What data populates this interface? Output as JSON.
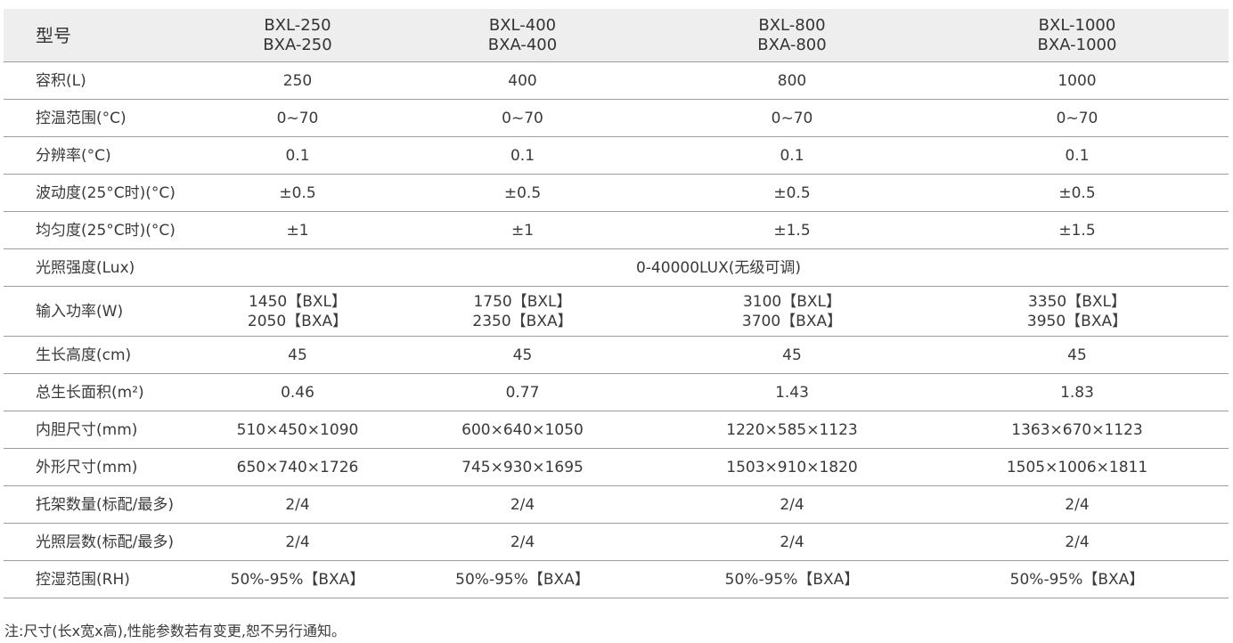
{
  "header": {
    "label": "型号",
    "models": [
      [
        "BXL-250",
        "BXA-250"
      ],
      [
        "BXL-400",
        "BXA-400"
      ],
      [
        "BXL-800",
        "BXA-800"
      ],
      [
        "BXL-1000",
        "BXA-1000"
      ]
    ]
  },
  "rows": [
    {
      "label": "容积(L)",
      "values": [
        "250",
        "400",
        "800",
        "1000"
      ]
    },
    {
      "label": "控温范围(°C)",
      "values": [
        "0~70",
        "0~70",
        "0~70",
        "0~70"
      ]
    },
    {
      "label": "分辨率(°C)",
      "values": [
        "0.1",
        "0.1",
        "0.1",
        "0.1"
      ]
    },
    {
      "label": "波动度(25°C时)(°C)",
      "values": [
        "±0.5",
        "±0.5",
        "±0.5",
        "±0.5"
      ]
    },
    {
      "label": "均匀度(25°C时)(°C)",
      "values": [
        "±1",
        "±1",
        "±1.5",
        "±1.5"
      ]
    },
    {
      "label": "光照强度(Lux)",
      "merged": "0-40000LUX(无级可调)"
    },
    {
      "label": "输入功率(W)",
      "values2": [
        [
          "1450【BXL】",
          "2050【BXA】"
        ],
        [
          "1750【BXL】",
          "2350【BXA】"
        ],
        [
          "3100【BXL】",
          "3700【BXA】"
        ],
        [
          "3350【BXL】",
          "3950【BXA】"
        ]
      ]
    },
    {
      "label": "生长高度(cm)",
      "values": [
        "45",
        "45",
        "45",
        "45"
      ]
    },
    {
      "label": "总生长面积(m²)",
      "values": [
        "0.46",
        "0.77",
        "1.43",
        "1.83"
      ]
    },
    {
      "label": "内胆尺寸(mm)",
      "values": [
        "510×450×1090",
        "600×640×1050",
        "1220×585×1123",
        "1363×670×1123"
      ]
    },
    {
      "label": "外形尺寸(mm)",
      "values": [
        "650×740×1726",
        "745×930×1695",
        "1503×910×1820",
        "1505×1006×1811"
      ]
    },
    {
      "label": "托架数量(标配/最多)",
      "values": [
        "2/4",
        "2/4",
        "2/4",
        "2/4"
      ]
    },
    {
      "label": "光照层数(标配/最多)",
      "values": [
        "2/4",
        "2/4",
        "2/4",
        "2/4"
      ]
    },
    {
      "label": "控湿范围(RH)",
      "values": [
        "50%-95%【BXA】",
        "50%-95%【BXA】",
        "50%-95%【BXA】",
        "50%-95%【BXA】"
      ]
    }
  ],
  "note": "注:尺寸(长x宽x高),性能参数若有变更,恕不另行通知。"
}
